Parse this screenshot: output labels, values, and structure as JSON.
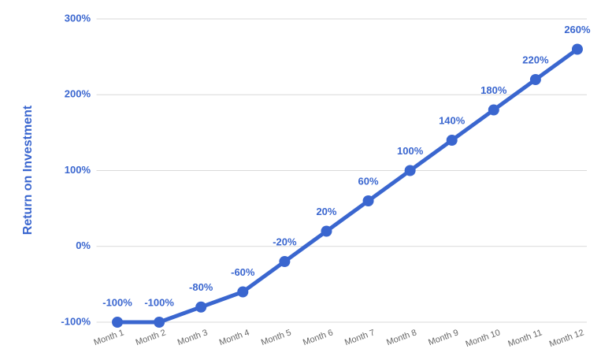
{
  "chart_data": {
    "type": "line",
    "y_label": "Return on Investment",
    "categories": [
      "Month 1",
      "Month 2",
      "Month 3",
      "Month 4",
      "Month 5",
      "Month 6",
      "Month 7",
      "Month 8",
      "Month 9",
      "Month 10",
      "Month 11",
      "Month 12"
    ],
    "values": [
      -100,
      -100,
      -80,
      -60,
      -20,
      20,
      60,
      100,
      140,
      180,
      220,
      260
    ],
    "value_labels": [
      "-100%",
      "-100%",
      "-80%",
      "-60%",
      "-20%",
      "20%",
      "60%",
      "100%",
      "140%",
      "180%",
      "220%",
      "260%"
    ],
    "color": "#3a66cf",
    "ylim": [
      -100,
      300
    ],
    "yticks": [
      {
        "value": -100,
        "label": "-100%"
      },
      {
        "value": 0,
        "label": "0%"
      },
      {
        "value": 100,
        "label": "100%"
      },
      {
        "value": 200,
        "label": "200%"
      },
      {
        "value": 300,
        "label": "300%"
      }
    ],
    "grid": true
  }
}
